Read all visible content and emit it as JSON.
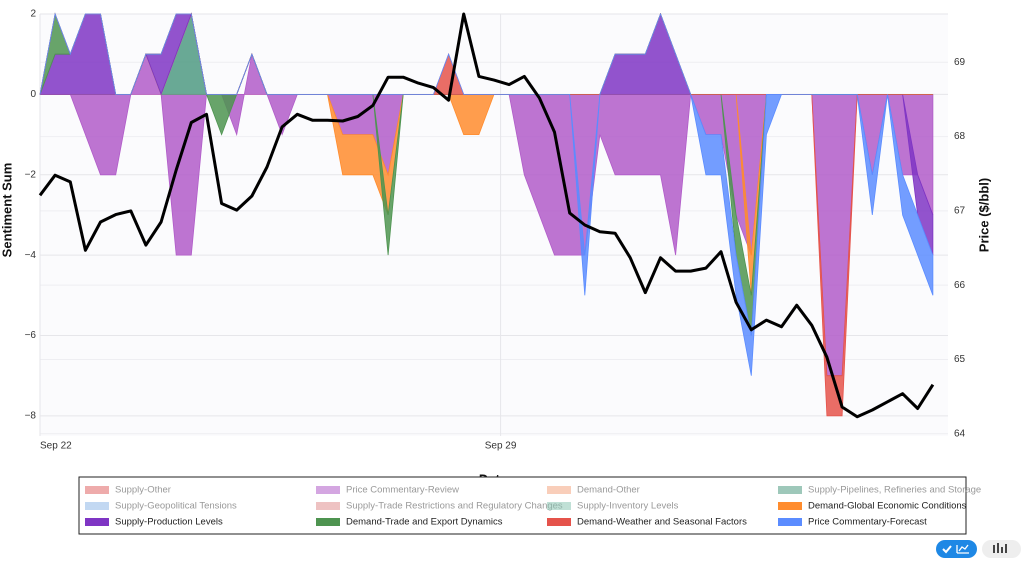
{
  "chart_data": {
    "type": "area",
    "x_label": "Date",
    "y_label": "Sentiment Sum",
    "y2_label": "Price ($/bbl)",
    "xlim": [
      0,
      13.8
    ],
    "xticks": [
      {
        "value": 0,
        "label": "Sep 22"
      },
      {
        "value": 7,
        "label": "Sep 29"
      }
    ],
    "ylim": [
      -8.5,
      2
    ],
    "yticks": [
      {
        "value": -8,
        "label": "−8"
      },
      {
        "value": -6,
        "label": "−6"
      },
      {
        "value": -4,
        "label": "−4"
      },
      {
        "value": -2,
        "label": "−2"
      },
      0,
      2
    ],
    "y2lim": [
      63.97,
      69.65
    ],
    "y2ticks": [
      64,
      65,
      66,
      67,
      68,
      69
    ],
    "grid": true,
    "x": [
      0,
      0.23,
      0.46,
      0.69,
      0.92,
      1.15,
      1.38,
      1.61,
      1.84,
      2.07,
      2.3,
      2.53,
      2.76,
      2.99,
      3.22,
      3.45,
      3.68,
      3.91,
      4.14,
      4.37,
      4.6,
      4.83,
      5.06,
      5.29,
      5.52,
      5.75,
      5.98,
      6.21,
      6.44,
      6.67,
      6.9,
      7.13,
      7.36,
      7.59,
      7.82,
      8.05,
      8.28,
      8.51,
      8.74,
      8.97,
      9.2,
      9.43,
      9.66,
      9.89,
      10.12,
      10.35,
      10.58,
      10.81,
      11.04,
      11.27,
      11.5,
      11.73,
      11.96,
      12.19,
      12.42,
      12.65,
      12.88,
      13.11,
      13.34,
      13.57
    ],
    "series": [
      {
        "name": "Supply-Other",
        "color": "#e06666",
        "values": [
          0,
          0,
          0,
          0,
          0,
          0,
          0,
          0,
          0,
          0,
          0,
          0,
          0,
          0,
          0,
          0,
          0,
          0,
          0,
          0,
          0,
          0,
          0,
          0,
          0,
          0,
          0,
          0,
          0,
          0,
          0,
          0,
          0,
          0,
          0,
          0,
          0,
          0,
          0,
          0,
          0,
          0,
          0,
          0,
          0,
          0,
          0,
          0,
          0,
          0,
          0,
          0,
          0,
          0,
          0,
          0,
          0,
          0,
          0,
          0
        ]
      },
      {
        "name": "Price Commentary-Review",
        "color": "#b15cc9",
        "values": [
          0,
          0,
          0,
          -1,
          -2,
          -2,
          0,
          1,
          0,
          -4,
          -4,
          0,
          0,
          -1,
          1,
          0,
          -1,
          0,
          0,
          0,
          -1,
          -1,
          -1,
          -2,
          0,
          0,
          0,
          0,
          0,
          0,
          0,
          0,
          -2,
          -3,
          -4,
          -4,
          -4,
          -1,
          -2,
          -2,
          -2,
          -2,
          -4,
          0,
          -1,
          -1,
          -3,
          -4,
          0,
          0,
          0,
          0,
          -7,
          -7,
          0,
          -2,
          0,
          -2,
          -2,
          -3
        ]
      },
      {
        "name": "Demand-Other",
        "color": "#f4a582",
        "values": [
          0,
          0,
          0,
          0,
          0,
          0,
          0,
          0,
          0,
          0,
          0,
          0,
          0,
          0,
          0,
          0,
          0,
          0,
          0,
          0,
          0,
          0,
          0,
          0,
          0,
          0,
          0,
          0,
          0,
          0,
          0,
          0,
          0,
          0,
          0,
          0,
          0,
          0,
          0,
          0,
          0,
          0,
          0,
          0,
          0,
          0,
          0,
          0,
          0,
          0,
          0,
          0,
          0,
          0,
          0,
          0,
          0,
          0,
          0,
          0
        ]
      },
      {
        "name": "Supply-Pipelines, Refineries and Storage",
        "color": "#4f9a82",
        "values": [
          0,
          0,
          0,
          0,
          0,
          0,
          0,
          0,
          0,
          1,
          2,
          0,
          0,
          0,
          0,
          0,
          0,
          0,
          0,
          0,
          0,
          0,
          0,
          0,
          0,
          0,
          0,
          0,
          0,
          0,
          0,
          0,
          0,
          0,
          0,
          0,
          0,
          0,
          0,
          0,
          0,
          0,
          0,
          0,
          0,
          0,
          0,
          0,
          0,
          0,
          0,
          0,
          0,
          0,
          0,
          0,
          0,
          0,
          0,
          0
        ]
      },
      {
        "name": "Supply-Geopolitical Tensions",
        "color": "#8fb8e8",
        "values": [
          0,
          0,
          0,
          0,
          0,
          0,
          0,
          0,
          0,
          0,
          0,
          0,
          0,
          0,
          0,
          0,
          0,
          0,
          0,
          0,
          0,
          0,
          0,
          0,
          0,
          0,
          0,
          0,
          0,
          0,
          0,
          0,
          0,
          0,
          0,
          0,
          0,
          0,
          0,
          0,
          0,
          0,
          0,
          0,
          0,
          0,
          0,
          0,
          0,
          0,
          0,
          0,
          0,
          0,
          0,
          0,
          0,
          0,
          0,
          0
        ]
      },
      {
        "name": "Supply-Trade Restrictions and Regulatory Changes",
        "color": "#e09090",
        "values": [
          0,
          0,
          0,
          0,
          0,
          0,
          0,
          0,
          0,
          0,
          0,
          0,
          0,
          0,
          0,
          0,
          0,
          0,
          0,
          0,
          0,
          0,
          0,
          0,
          0,
          0,
          0,
          0,
          0,
          0,
          0,
          0,
          0,
          0,
          0,
          0,
          0,
          0,
          0,
          0,
          0,
          0,
          0,
          0,
          0,
          0,
          0,
          0,
          0,
          0,
          0,
          0,
          0,
          0,
          0,
          0,
          0,
          0,
          0,
          0
        ]
      },
      {
        "name": "Supply-Inventory Levels",
        "color": "#8cc7b5",
        "values": [
          0,
          0,
          0,
          0,
          0,
          0,
          0,
          0,
          0,
          0,
          0,
          0,
          0,
          0,
          0,
          0,
          0,
          0,
          0,
          0,
          0,
          0,
          0,
          0,
          0,
          0,
          0,
          0,
          0,
          0,
          0,
          0,
          0,
          0,
          0,
          0,
          0,
          0,
          0,
          0,
          0,
          0,
          0,
          0,
          0,
          0,
          0,
          0,
          0,
          0,
          0,
          0,
          0,
          0,
          0,
          0,
          0,
          0,
          0,
          0
        ]
      },
      {
        "name": "Demand-Global Economic Conditions",
        "color": "#ff8c2e",
        "values": [
          0,
          0,
          0,
          0,
          0,
          0,
          0,
          0,
          0,
          0,
          0,
          0,
          0,
          0,
          0,
          0,
          0,
          0,
          0,
          0,
          -1,
          -1,
          -1,
          -1,
          0,
          0,
          0,
          0,
          -1,
          -1,
          0,
          0,
          0,
          0,
          0,
          0,
          0,
          0,
          0,
          0,
          0,
          0,
          0,
          0,
          0,
          0,
          0,
          -1,
          0,
          0,
          0,
          0,
          0,
          0,
          0,
          0,
          0,
          0,
          0,
          0
        ]
      },
      {
        "name": "Supply-Production Levels",
        "color": "#7f35c4",
        "values": [
          0,
          1,
          1,
          2,
          2,
          0,
          0,
          0,
          1,
          1,
          0,
          0,
          0,
          0,
          0,
          0,
          0,
          0,
          0,
          0,
          0,
          0,
          0,
          0,
          0,
          0,
          0,
          0,
          0,
          0,
          0,
          0,
          0,
          0,
          0,
          0,
          0,
          0,
          1,
          1,
          1,
          2,
          1,
          0,
          0,
          0,
          0,
          0,
          0,
          0,
          0,
          0,
          0,
          0,
          0,
          0,
          0,
          0,
          -1,
          -1
        ]
      },
      {
        "name": "Demand-Trade and Export Dynamics",
        "color": "#4e9450",
        "values": [
          0,
          1,
          0,
          0,
          0,
          0,
          0,
          0,
          0,
          0,
          0,
          0,
          -1,
          0,
          0,
          0,
          0,
          0,
          0,
          0,
          0,
          0,
          0,
          -1,
          0,
          0,
          0,
          0,
          0,
          0,
          0,
          0,
          0,
          0,
          0,
          0,
          0,
          0,
          0,
          0,
          0,
          0,
          0,
          0,
          0,
          0,
          -1,
          -1,
          0,
          0,
          0,
          0,
          0,
          0,
          0,
          0,
          0,
          0,
          0,
          0
        ]
      },
      {
        "name": "Demand-Weather and Seasonal Factors",
        "color": "#e5534b",
        "values": [
          0,
          0,
          0,
          0,
          0,
          0,
          0,
          0,
          0,
          0,
          0,
          0,
          0,
          0,
          0,
          0,
          0,
          0,
          0,
          0,
          0,
          0,
          0,
          0,
          0,
          0,
          0,
          1,
          0,
          0,
          0,
          0,
          0,
          0,
          0,
          0,
          0,
          0,
          0,
          0,
          0,
          0,
          0,
          0,
          0,
          0,
          0,
          0,
          0,
          0,
          0,
          0,
          -1,
          -1,
          0,
          0,
          0,
          0,
          0,
          0
        ]
      },
      {
        "name": "Price Commentary-Forecast",
        "color": "#5b8cff",
        "values": [
          0,
          0,
          0,
          0,
          0,
          0,
          0,
          0,
          0,
          0,
          0,
          0,
          0,
          0,
          0,
          0,
          0,
          0,
          0,
          0,
          0,
          0,
          0,
          0,
          0,
          0,
          0,
          0,
          0,
          0,
          0,
          0,
          0,
          0,
          0,
          0,
          -1,
          0,
          0,
          0,
          0,
          0,
          0,
          0,
          -1,
          -1,
          -1,
          -1,
          -1,
          0,
          0,
          0,
          0,
          0,
          0,
          -1,
          0,
          -1,
          -1,
          -1
        ]
      },
      {
        "axis": "y2",
        "color": "#000000",
        "values": [
          67.21,
          67.48,
          67.39,
          66.47,
          66.85,
          66.95,
          67.0,
          66.54,
          66.85,
          67.55,
          68.19,
          68.3,
          67.1,
          67.01,
          67.2,
          67.59,
          68.13,
          68.3,
          68.22,
          68.22,
          68.21,
          68.27,
          68.42,
          68.8,
          68.8,
          68.72,
          68.66,
          68.49,
          69.65,
          68.81,
          68.76,
          68.7,
          68.81,
          68.52,
          68.06,
          66.97,
          66.81,
          66.72,
          66.7,
          66.37,
          65.9,
          66.37,
          66.19,
          66.19,
          66.23,
          66.45,
          65.77,
          65.4,
          65.53,
          65.44,
          65.73,
          65.46,
          65.03,
          64.36,
          64.23,
          64.32,
          64.43,
          64.54,
          64.34,
          64.66
        ]
      }
    ]
  }
}
